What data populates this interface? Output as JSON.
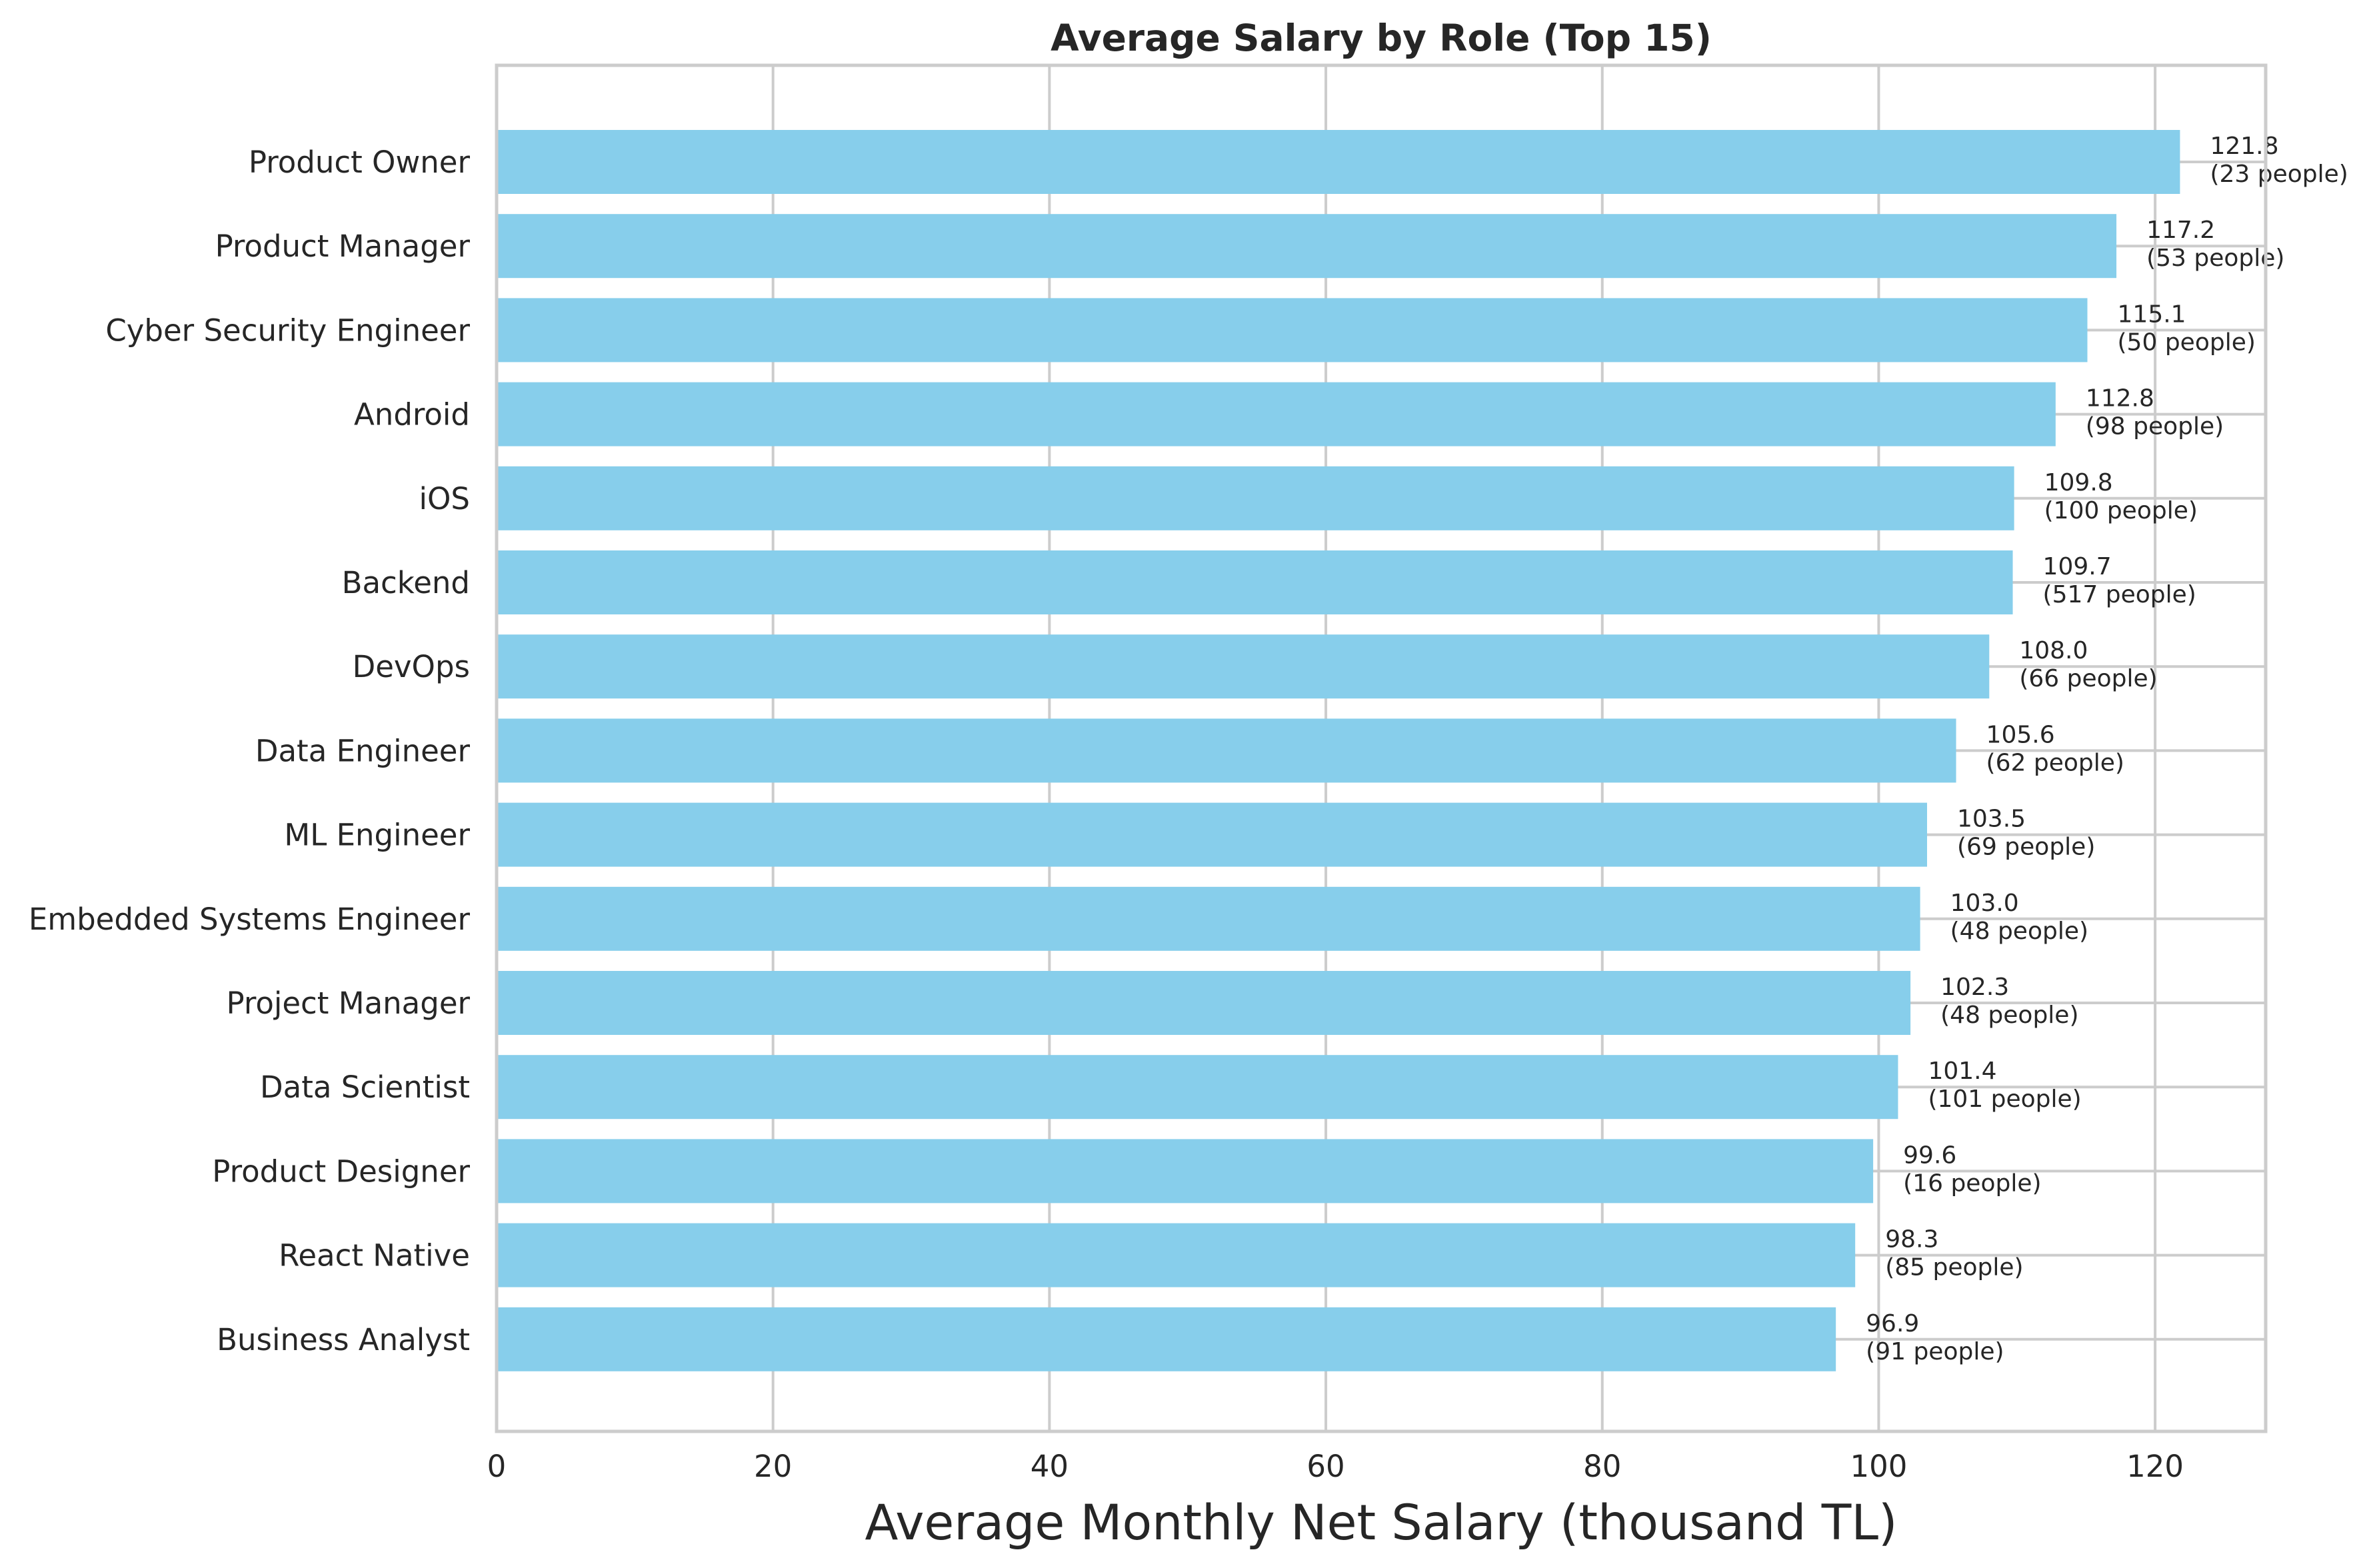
{
  "chart_data": {
    "type": "bar",
    "orientation": "horizontal",
    "title": "Average Salary by Role (Top 15)",
    "xlabel": "Average Monthly Net Salary (thousand TL)",
    "ylabel": "",
    "xlim": [
      0,
      128
    ],
    "xticks": [
      0,
      20,
      40,
      60,
      80,
      100,
      120
    ],
    "grid": true,
    "bar_color": "#87CEEB",
    "categories": [
      "Product Owner",
      "Product Manager",
      "Cyber Security Engineer",
      "Android",
      "iOS",
      "Backend",
      "DevOps",
      "Data Engineer",
      "ML Engineer",
      "Embedded Systems Engineer",
      "Project Manager",
      "Data Scientist",
      "Product Designer",
      "React Native",
      "Business Analyst"
    ],
    "values": [
      121.8,
      117.2,
      115.1,
      112.8,
      109.8,
      109.7,
      108.0,
      105.6,
      103.5,
      103.0,
      102.3,
      101.4,
      99.6,
      98.3,
      96.9
    ],
    "value_labels": [
      "121.8",
      "117.2",
      "115.1",
      "112.8",
      "109.8",
      "109.7",
      "108.0",
      "105.6",
      "103.5",
      "103.0",
      "102.3",
      "101.4",
      "99.6",
      "98.3",
      "96.9"
    ],
    "count_labels": [
      "(23 people)",
      "(53 people)",
      "(50 people)",
      "(98 people)",
      "(100 people)",
      "(517 people)",
      "(66 people)",
      "(62 people)",
      "(69 people)",
      "(48 people)",
      "(48 people)",
      "(101 people)",
      "(16 people)",
      "(85 people)",
      "(91 people)"
    ]
  }
}
